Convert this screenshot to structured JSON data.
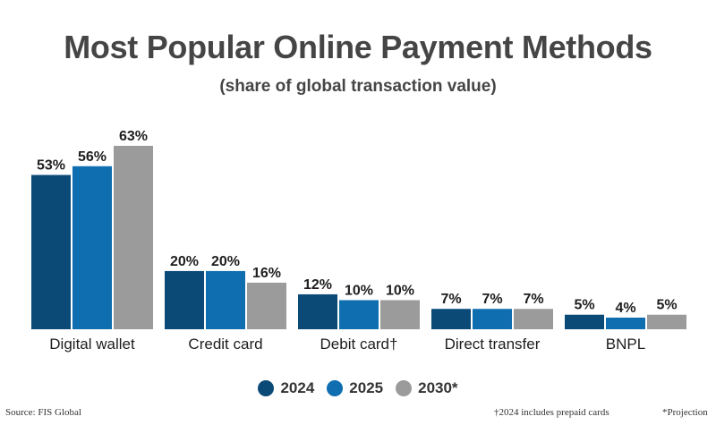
{
  "title": "Most Popular Online Payment Methods",
  "subtitle": "(share of global transaction value)",
  "source": "Source: FIS Global",
  "footnotes": [
    "†2024 includes prepaid cards",
    "*Projection"
  ],
  "colors": {
    "2024": "#0b4a77",
    "2025": "#0f6eb0",
    "2030*": "#9b9b9b"
  },
  "chart_data": {
    "type": "bar",
    "categories": [
      "Digital wallet",
      "Credit card",
      "Debit card†",
      "Direct transfer",
      "BNPL"
    ],
    "series": [
      {
        "name": "2024",
        "values": [
          53,
          20,
          12,
          7,
          5
        ],
        "labels": [
          "53%",
          "20%",
          "12%",
          "7%",
          "5%"
        ]
      },
      {
        "name": "2025",
        "values": [
          56,
          20,
          10,
          7,
          4
        ],
        "labels": [
          "56%",
          "20%",
          "10%",
          "7%",
          "4%"
        ]
      },
      {
        "name": "2030*",
        "values": [
          63,
          16,
          10,
          7,
          5
        ],
        "labels": [
          "63%",
          "16%",
          "10%",
          "7%",
          "5%"
        ]
      }
    ],
    "ylim": [
      0,
      63
    ],
    "grid": false,
    "legend_position": "bottom"
  }
}
